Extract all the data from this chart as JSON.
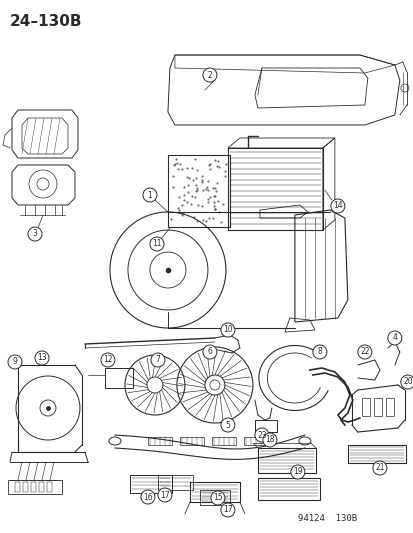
{
  "title": "24–130B",
  "bg_color": "#ffffff",
  "line_color": "#2a2a2a",
  "watermark": "94124  130B",
  "title_fontsize": 11,
  "watermark_fontsize": 6.5
}
